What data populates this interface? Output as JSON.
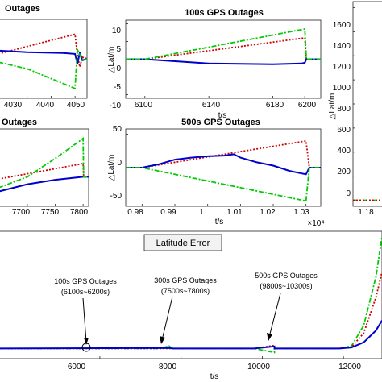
{
  "chart_data": [
    {
      "panel": "top-left",
      "type": "line",
      "title": "Outages",
      "xlabel": "",
      "ylabel": "",
      "x_ticks": [
        4030,
        4040,
        4050
      ],
      "xlim": [
        4018,
        4055
      ],
      "ylim": [
        -1.2,
        1.2
      ],
      "series": [
        {
          "color": "#cc0000",
          "style": "dotted",
          "x": [
            4018,
            4050,
            4051,
            4052,
            4053,
            4055
          ],
          "y": [
            0.15,
            0.75,
            0.1,
            -0.25,
            0.05,
            0.0
          ]
        },
        {
          "color": "#0000cc",
          "style": "solid",
          "x": [
            4018,
            4030,
            4045,
            4050,
            4051,
            4052,
            4053,
            4055
          ],
          "y": [
            0.25,
            0.2,
            0.18,
            0.15,
            -0.15,
            0.2,
            -0.05,
            0.0
          ]
        },
        {
          "color": "#00cc00",
          "style": "dashdot",
          "x": [
            4018,
            4030,
            4040,
            4050,
            4051,
            4053,
            4055
          ],
          "y": [
            -0.1,
            -0.3,
            -0.6,
            -0.9,
            0.3,
            -0.05,
            0.0
          ]
        }
      ]
    },
    {
      "panel": "top-middle",
      "type": "line",
      "title": "100s GPS Outages",
      "xlabel": "t/s",
      "ylabel": "△Lat/m",
      "x_ticks": [
        6100,
        6140,
        6180,
        6200
      ],
      "y_ticks": [
        -10,
        -5,
        0,
        5,
        10
      ],
      "xlim": [
        6088,
        6210
      ],
      "ylim": [
        -11,
        11
      ],
      "series": [
        {
          "color": "#cc0000",
          "style": "dotted",
          "x": [
            6088,
            6100,
            6200,
            6201,
            6210
          ],
          "y": [
            0,
            0,
            6,
            0,
            0
          ]
        },
        {
          "color": "#0000cc",
          "style": "solid",
          "x": [
            6088,
            6100,
            6140,
            6180,
            6198,
            6200,
            6201,
            6210
          ],
          "y": [
            0,
            0,
            -1.2,
            -1.4,
            -1.2,
            -1.0,
            0,
            0
          ]
        },
        {
          "color": "#00cc00",
          "style": "dashdot",
          "x": [
            6088,
            6100,
            6200,
            6201,
            6210
          ],
          "y": [
            0,
            0,
            8.5,
            0,
            0
          ]
        }
      ]
    },
    {
      "panel": "top-right",
      "type": "line",
      "title": "",
      "xlabel": "",
      "ylabel": "△Lat/m",
      "y_ticks": [
        0,
        200,
        400,
        600,
        800,
        1000,
        1200,
        1400,
        1600
      ],
      "ylim": [
        -50,
        1650
      ],
      "series": [
        {
          "color": "#00cc00",
          "style": "dashdot",
          "x": [
            0,
            1
          ],
          "y": [
            0,
            0
          ]
        },
        {
          "color": "#cc0000",
          "style": "dotted",
          "x": [
            0,
            1
          ],
          "y": [
            0,
            0
          ]
        }
      ]
    },
    {
      "panel": "middle-left",
      "type": "line",
      "title": "Outages",
      "xlabel": "",
      "ylabel": "",
      "x_ticks": [
        7700,
        7750,
        7800
      ],
      "xlim": [
        7648,
        7810
      ],
      "ylim": [
        -40,
        65
      ],
      "series": [
        {
          "color": "#cc0000",
          "style": "dotted",
          "x": [
            7648,
            7800,
            7801,
            7810
          ],
          "y": [
            -3,
            18,
            0,
            0
          ]
        },
        {
          "color": "#0000cc",
          "style": "solid",
          "x": [
            7648,
            7700,
            7750,
            7800,
            7801,
            7810
          ],
          "y": [
            -20,
            -10,
            -4,
            0,
            0,
            0
          ]
        },
        {
          "color": "#00cc00",
          "style": "dashdot",
          "x": [
            7648,
            7700,
            7750,
            7800,
            7801,
            7810
          ],
          "y": [
            -15,
            0,
            25,
            52,
            0,
            0
          ]
        }
      ]
    },
    {
      "panel": "middle-middle",
      "type": "line",
      "title": "500s GPS Outages",
      "xlabel": "t/s",
      "ylabel": "△Lat/m",
      "x_tick_labels": [
        "0.98",
        "0.99",
        "1",
        "1.01",
        "1.02",
        "1.03"
      ],
      "x_ticks": [
        0.98,
        0.99,
        1.0,
        1.01,
        1.02,
        1.03
      ],
      "x_exponent": "×10⁴",
      "y_ticks": [
        -50,
        0,
        50
      ],
      "xlim": [
        0.975,
        1.0345
      ],
      "ylim": [
        -58,
        58
      ],
      "series": [
        {
          "color": "#cc0000",
          "style": "dotted",
          "x": [
            0.975,
            0.98,
            1.03,
            1.031,
            1.0345
          ],
          "y": [
            0,
            0,
            40,
            0,
            0
          ]
        },
        {
          "color": "#0000cc",
          "style": "solid",
          "x": [
            0.975,
            0.98,
            0.985,
            0.99,
            0.995,
            1.0,
            1.005,
            1.008,
            1.01,
            1.015,
            1.02,
            1.025,
            1.03,
            1.031,
            1.0345
          ],
          "y": [
            0,
            0,
            5,
            12,
            15,
            17,
            18,
            20,
            15,
            8,
            3,
            -5,
            -10,
            0,
            0
          ]
        },
        {
          "color": "#00cc00",
          "style": "dashdot",
          "x": [
            0.975,
            0.98,
            1.03,
            1.031,
            1.0345
          ],
          "y": [
            0,
            0,
            -50,
            0,
            0
          ]
        }
      ]
    },
    {
      "panel": "middle-right",
      "type": "line",
      "title": "",
      "xlabel": "",
      "ylabel": "",
      "x_tick_labels": [
        "1.18"
      ],
      "series": []
    },
    {
      "panel": "bottom",
      "type": "line",
      "title": "Latitude Error",
      "xlabel": "t/s",
      "ylabel": "",
      "x_ticks": [
        6000,
        8000,
        10000,
        12000
      ],
      "xlim": [
        3500,
        12950
      ],
      "ylim": [
        -20,
        230
      ],
      "series": [
        {
          "color": "#00cc00",
          "style": "dashdot",
          "x": [
            3500,
            7500,
            7700,
            7800,
            9800,
            10300,
            10301,
            11900,
            12200,
            12500,
            12800,
            12950
          ],
          "y": [
            0,
            0,
            5,
            0,
            0,
            -8,
            0,
            0,
            5,
            45,
            140,
            220
          ]
        },
        {
          "color": "#cc0000",
          "style": "dotted",
          "x": [
            3500,
            7800,
            9800,
            10300,
            10301,
            11900,
            12200,
            12500,
            12800,
            12950
          ],
          "y": [
            0,
            0,
            0,
            6,
            0,
            0,
            3,
            30,
            100,
            150
          ]
        },
        {
          "color": "#0000cc",
          "style": "solid",
          "x": [
            3500,
            7700,
            7800,
            9800,
            10300,
            10301,
            11900,
            12200,
            12500,
            12800,
            12950
          ],
          "y": [
            0,
            1,
            0,
            0,
            4,
            0,
            0,
            2,
            12,
            35,
            55
          ]
        }
      ],
      "annotations": [
        {
          "lines": [
            "100s GPS Outages",
            "(6100s~6200s)"
          ],
          "x": 6150,
          "y": 0
        },
        {
          "lines": [
            "300s GPS Outages",
            "(7500s~7800s)"
          ],
          "x": 7650,
          "y": 0
        },
        {
          "lines": [
            "500s GPS Outages",
            "(9800s~10300s)"
          ],
          "x": 10050,
          "y": 0
        }
      ]
    }
  ],
  "colors": {
    "red": "#cc0000",
    "blue": "#0000cc",
    "green": "#00cc00"
  }
}
